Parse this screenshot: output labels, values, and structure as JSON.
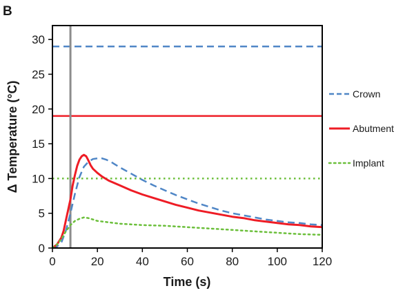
{
  "panel_label": "B",
  "colors": {
    "crown": "#4f86c6",
    "abutment": "#ee1c25",
    "implant": "#6bbf3a",
    "marker": "#8c8c8c",
    "axis": "#000000"
  },
  "chart_data": {
    "type": "line",
    "title": "",
    "xlabel": "Time (s)",
    "ylabel": "Δ Temperature  (°C)",
    "xlim": [
      0,
      120
    ],
    "ylim": [
      0,
      32
    ],
    "xticks": [
      0,
      20,
      40,
      60,
      80,
      100,
      120
    ],
    "yticks": [
      0,
      5,
      10,
      15,
      20,
      25,
      30
    ],
    "grid": false,
    "legend_position": "right",
    "vertical_marker_x": 8,
    "series": [
      {
        "name": "Crown",
        "color_key": "crown",
        "style": "dashed",
        "x": [
          0,
          2,
          4,
          6,
          8,
          10,
          12,
          14,
          16,
          18,
          20,
          22,
          24,
          26,
          28,
          30,
          35,
          40,
          45,
          50,
          55,
          60,
          65,
          70,
          75,
          80,
          85,
          90,
          95,
          100,
          105,
          110,
          115,
          120
        ],
        "y": [
          0,
          0.2,
          0.8,
          2.5,
          5.0,
          7.8,
          10.2,
          11.7,
          12.4,
          12.8,
          12.9,
          12.9,
          12.7,
          12.4,
          12.0,
          11.6,
          10.7,
          9.8,
          9.0,
          8.3,
          7.6,
          7.0,
          6.4,
          5.9,
          5.4,
          5.0,
          4.7,
          4.4,
          4.1,
          3.9,
          3.7,
          3.6,
          3.4,
          3.3
        ]
      },
      {
        "name": "Abutment",
        "color_key": "abutment",
        "style": "solid",
        "x": [
          0,
          2,
          4,
          5,
          6,
          7,
          8,
          9,
          10,
          11,
          12,
          13,
          14,
          15,
          16,
          17,
          18,
          20,
          22,
          25,
          30,
          35,
          40,
          45,
          50,
          55,
          60,
          65,
          70,
          75,
          80,
          85,
          90,
          95,
          100,
          105,
          110,
          115,
          120
        ],
        "y": [
          0,
          0.5,
          1.5,
          2.5,
          4.0,
          5.5,
          7.0,
          9.0,
          10.5,
          11.8,
          12.7,
          13.2,
          13.4,
          13.2,
          12.6,
          11.9,
          11.4,
          10.8,
          10.3,
          9.7,
          9.0,
          8.3,
          7.7,
          7.2,
          6.7,
          6.2,
          5.8,
          5.4,
          5.1,
          4.8,
          4.5,
          4.3,
          4.0,
          3.8,
          3.6,
          3.4,
          3.3,
          3.1,
          3.0
        ]
      },
      {
        "name": "Implant",
        "color_key": "implant",
        "style": "dotted",
        "x": [
          0,
          2,
          4,
          6,
          8,
          10,
          12,
          14,
          16,
          18,
          20,
          25,
          30,
          40,
          50,
          60,
          70,
          80,
          90,
          100,
          110,
          120
        ],
        "y": [
          0,
          0.5,
          1.3,
          2.4,
          3.3,
          3.9,
          4.2,
          4.4,
          4.3,
          4.1,
          3.9,
          3.7,
          3.5,
          3.3,
          3.2,
          3.0,
          2.8,
          2.6,
          2.4,
          2.2,
          2.0,
          1.9
        ]
      }
    ],
    "reference_lines": [
      {
        "y": 29,
        "color_key": "crown",
        "style": "dashed"
      },
      {
        "y": 19,
        "color_key": "abutment",
        "style": "solid"
      },
      {
        "y": 10,
        "color_key": "implant",
        "style": "dotted"
      }
    ]
  }
}
